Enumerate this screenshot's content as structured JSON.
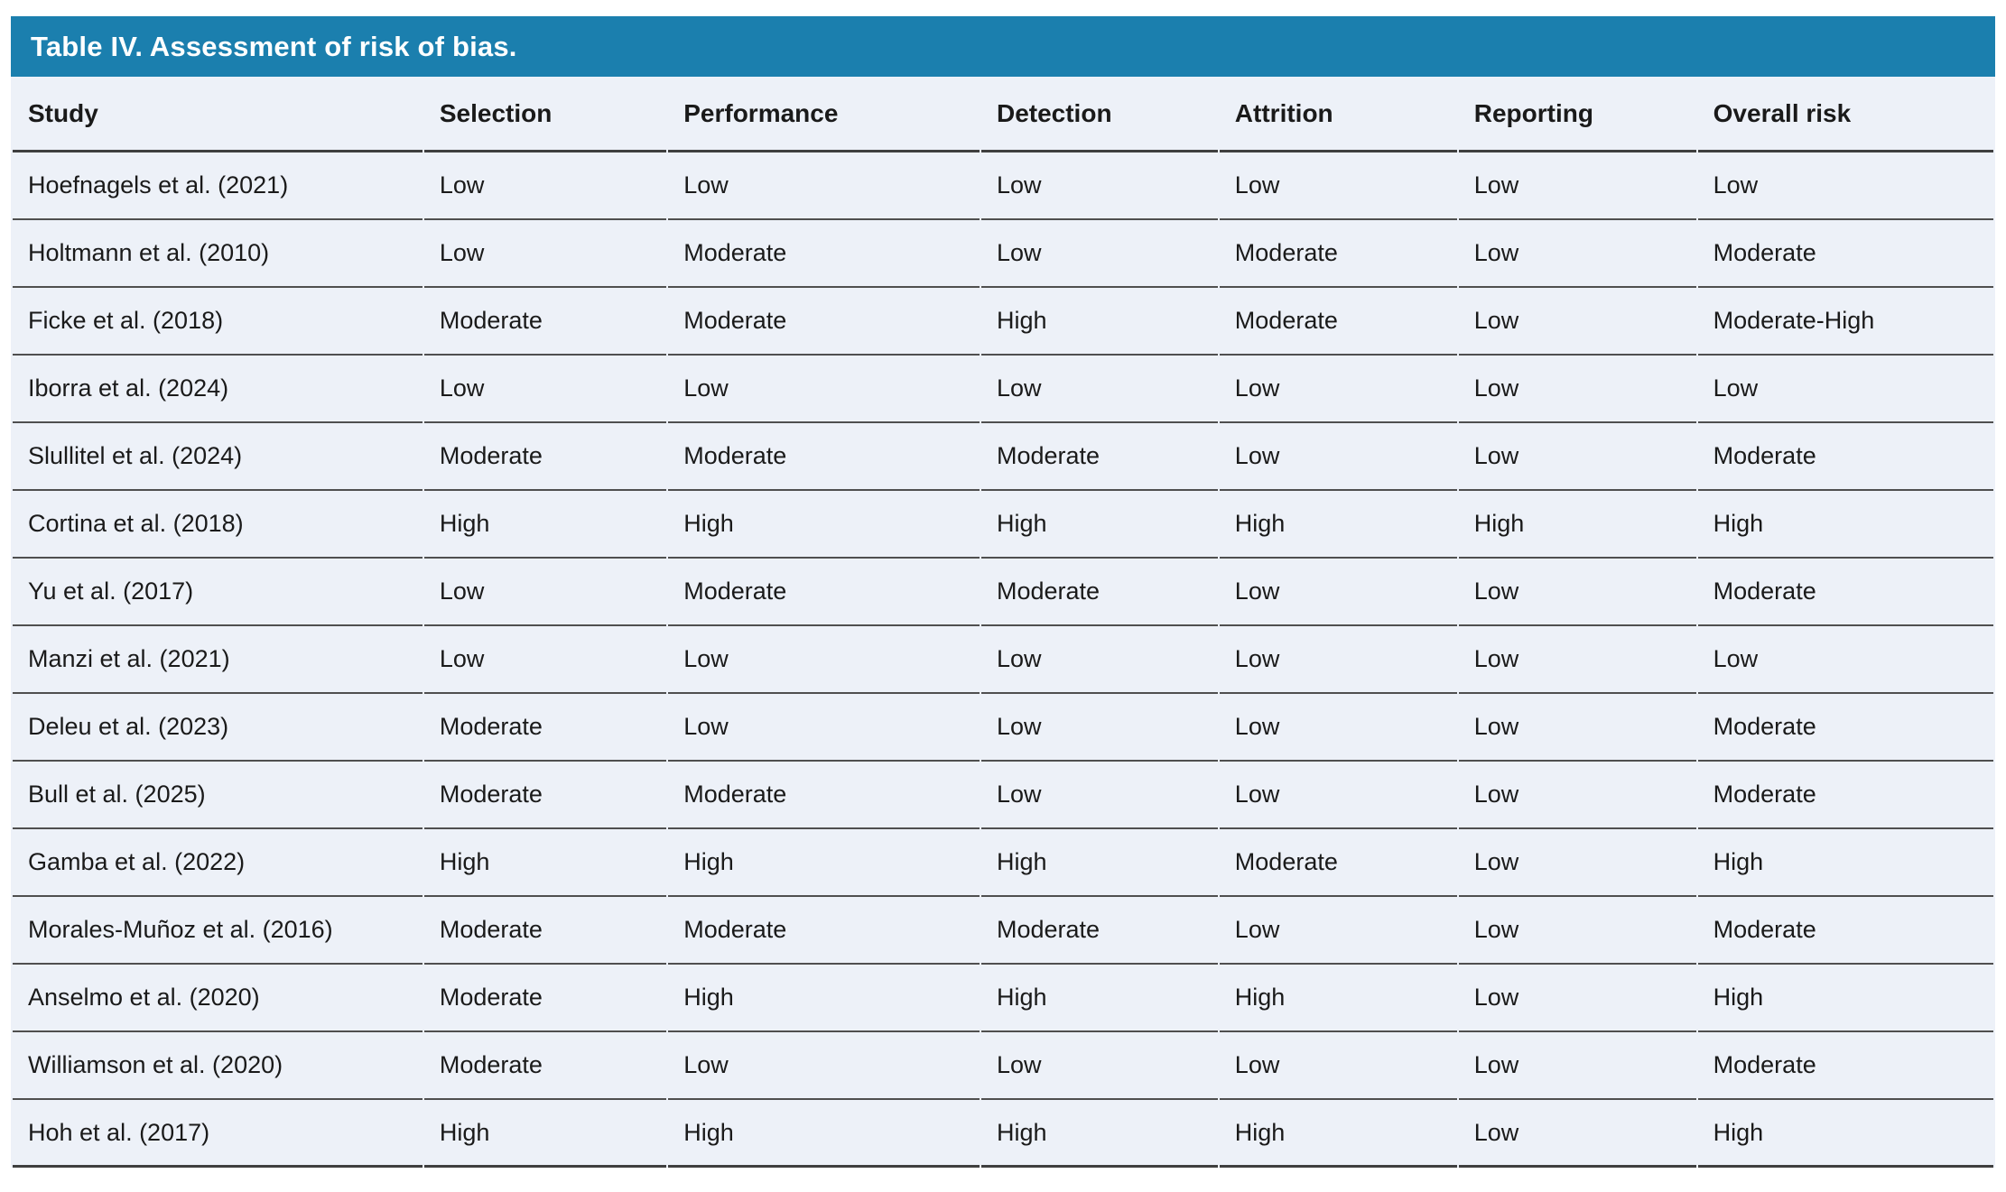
{
  "table": {
    "title": "Table IV. Assessment of risk of bias.",
    "columns": [
      "Study",
      "Selection",
      "Performance",
      "Detection",
      "Attrition",
      "Reporting",
      "Overall risk"
    ],
    "col_widths_pct": [
      20.8,
      12.3,
      15.8,
      12.0,
      12.05,
      12.05,
      15.0
    ],
    "rows": [
      [
        "Hoefnagels et al. (2021)",
        "Low",
        "Low",
        "Low",
        "Low",
        "Low",
        "Low"
      ],
      [
        "Holtmann et al. (2010)",
        "Low",
        "Moderate",
        "Low",
        "Moderate",
        "Low",
        "Moderate"
      ],
      [
        "Ficke et al. (2018)",
        "Moderate",
        "Moderate",
        "High",
        "Moderate",
        "Low",
        "Moderate-High"
      ],
      [
        "Iborra et al. (2024)",
        "Low",
        "Low",
        "Low",
        "Low",
        "Low",
        "Low"
      ],
      [
        "Slullitel et al. (2024)",
        "Moderate",
        "Moderate",
        "Moderate",
        "Low",
        "Low",
        "Moderate"
      ],
      [
        "Cortina et al. (2018)",
        "High",
        "High",
        "High",
        "High",
        "High",
        "High"
      ],
      [
        "Yu et al. (2017)",
        "Low",
        "Moderate",
        "Moderate",
        "Low",
        "Low",
        "Moderate"
      ],
      [
        "Manzi et al. (2021)",
        "Low",
        "Low",
        "Low",
        "Low",
        "Low",
        "Low"
      ],
      [
        "Deleu et al. (2023)",
        "Moderate",
        "Low",
        "Low",
        "Low",
        "Low",
        "Moderate"
      ],
      [
        "Bull et al. (2025)",
        "Moderate",
        "Moderate",
        "Low",
        "Low",
        "Low",
        "Moderate"
      ],
      [
        "Gamba et al. (2022)",
        "High",
        "High",
        "High",
        "Moderate",
        "Low",
        "High"
      ],
      [
        "Morales-Muñoz et al. (2016)",
        "Moderate",
        "Moderate",
        "Moderate",
        "Low",
        "Low",
        "Moderate"
      ],
      [
        "Anselmo et al. (2020)",
        "Moderate",
        "High",
        "High",
        "High",
        "Low",
        "High"
      ],
      [
        "Williamson et al. (2020)",
        "Moderate",
        "Low",
        "Low",
        "Low",
        "Low",
        "Moderate"
      ],
      [
        "Hoh et al. (2017)",
        "High",
        "High",
        "High",
        "High",
        "Low",
        "High"
      ]
    ]
  },
  "colors": {
    "title_bar_bg": "#1b7fae",
    "title_text": "#ffffff",
    "table_bg": "#edf1f8",
    "row_border": "#4f4f4f",
    "text": "#1a1a1a",
    "page_bg": "#ffffff"
  }
}
